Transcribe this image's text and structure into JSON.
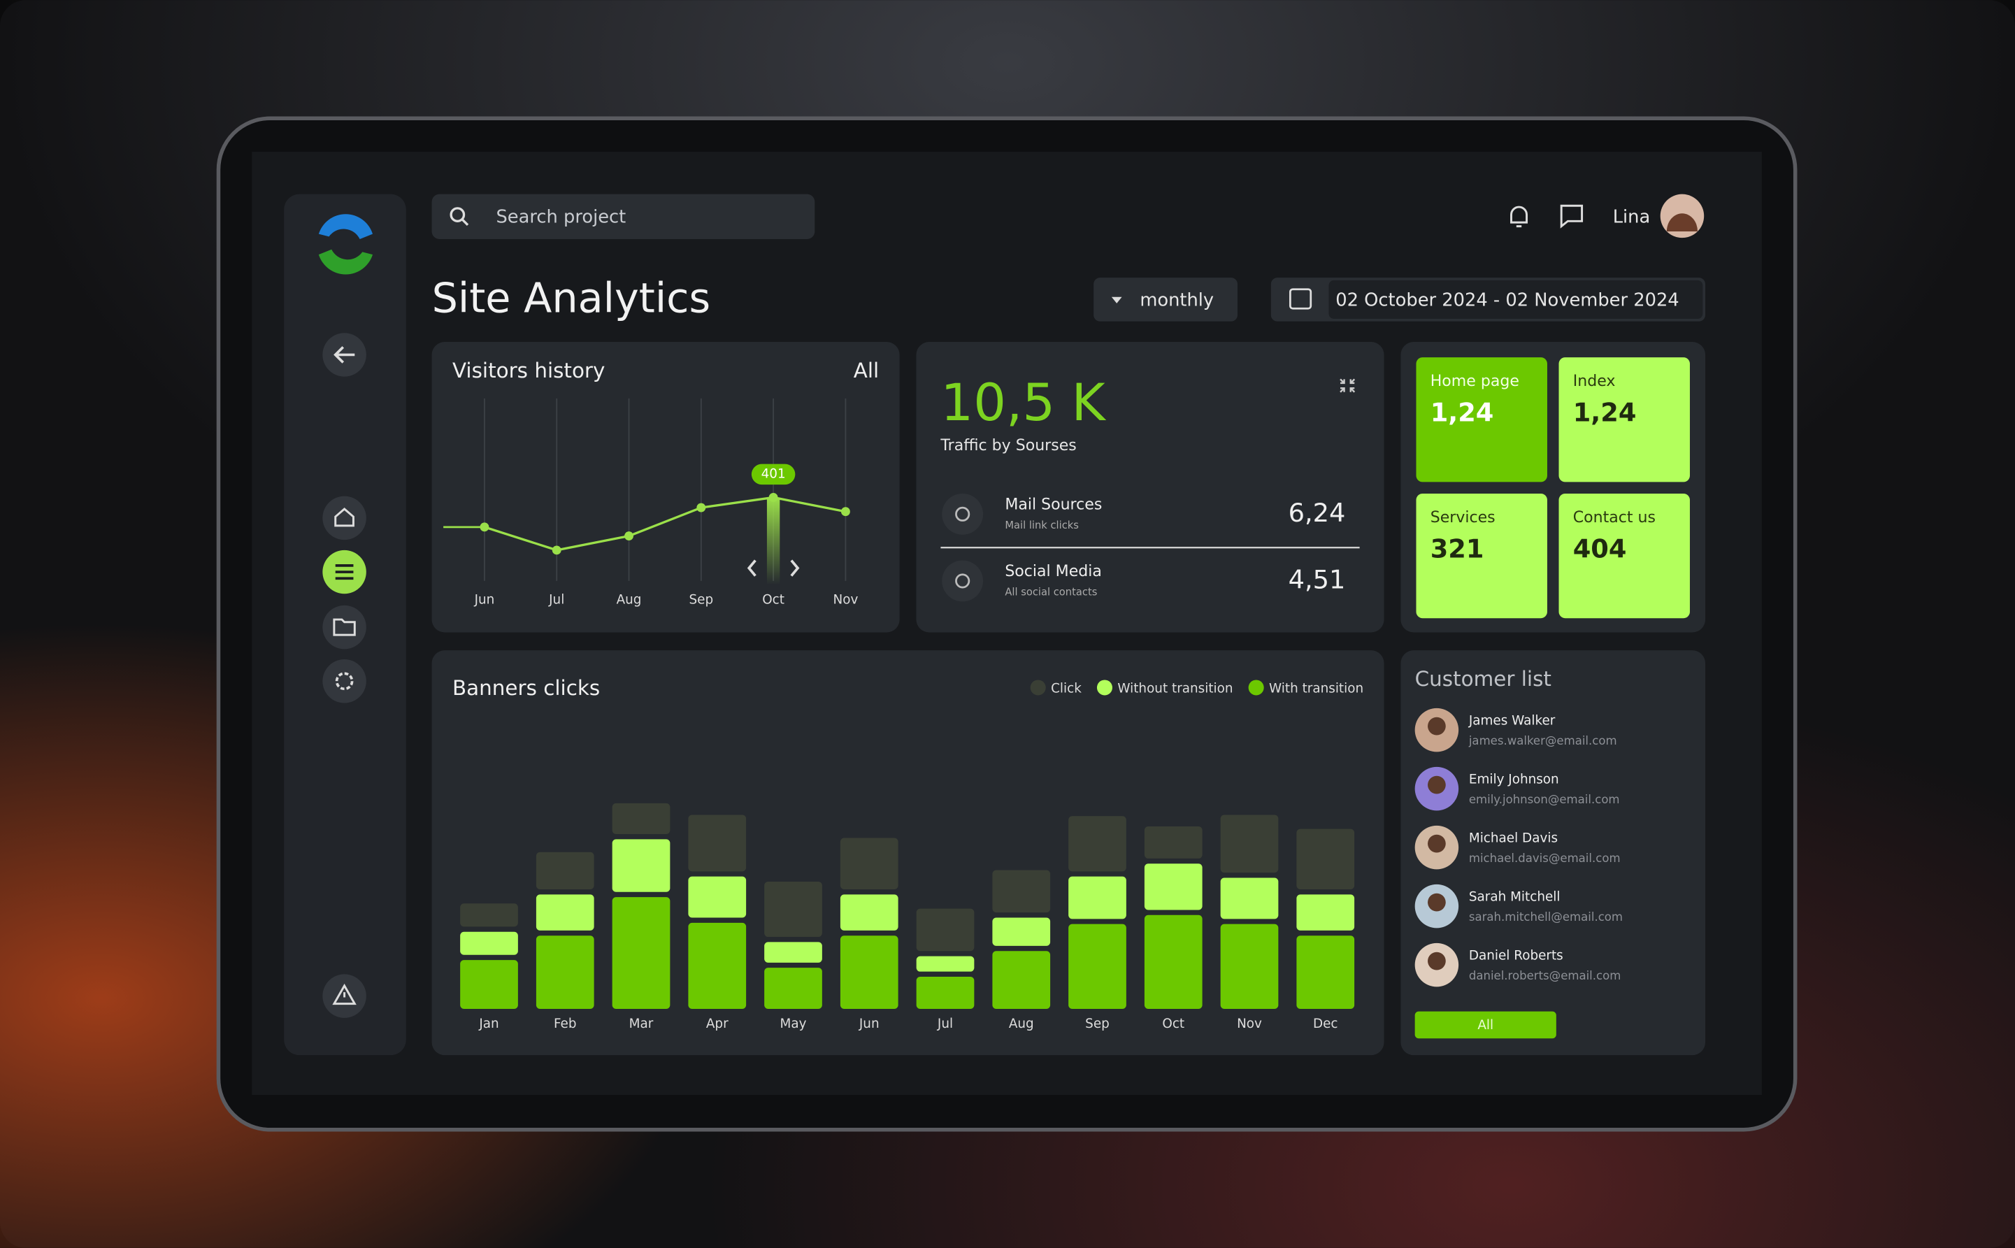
{
  "search": {
    "placeholder": "Search project"
  },
  "user": {
    "name": "Lina"
  },
  "page_title": "Site Analytics",
  "period": "monthly",
  "date_range": "02 October 2024 - 02 November 2024",
  "traffic": {
    "total": "10,5 K",
    "caption": "Traffic by Sourses",
    "sources": [
      {
        "name": "Mail Sources",
        "note": "Mail link clicks",
        "value": "6,24"
      },
      {
        "name": "Social Media",
        "note": "All social contacts",
        "value": "4,51"
      }
    ]
  },
  "tiles": [
    {
      "label": "Home page",
      "value": "1,24"
    },
    {
      "label": "Index",
      "value": "1,24"
    },
    {
      "label": "Services",
      "value": "321"
    },
    {
      "label": "Contact us",
      "value": "404"
    }
  ],
  "customers": {
    "title": "Customer list",
    "button": "All",
    "items": [
      {
        "name": "James Walker",
        "email": "james.walker@email.com"
      },
      {
        "name": "Emily Johnson",
        "email": "emily.johnson@email.com"
      },
      {
        "name": "Michael Davis",
        "email": "michael.davis@email.com"
      },
      {
        "name": "Sarah Mitchell",
        "email": "sarah.mitchell@email.com"
      },
      {
        "name": "Daniel Roberts",
        "email": "daniel.roberts@email.com"
      }
    ]
  },
  "chart_data": [
    {
      "type": "line",
      "title": "Visitors history",
      "filter": "All",
      "color": "#9be04a",
      "highlight": "Oct",
      "categories": [
        "Jun",
        "Jul",
        "Aug",
        "Sep",
        "Oct",
        "Nov"
      ],
      "values": [
        265,
        159,
        224,
        354,
        401,
        336
      ],
      "ylim": [
        0,
        855
      ],
      "grid": true
    },
    {
      "type": "stacked-bar",
      "title": "Banners clicks",
      "categories": [
        "Jan",
        "Feb",
        "Mar",
        "Apr",
        "May",
        "Jun",
        "Jul",
        "Aug",
        "Sep",
        "Oct",
        "Nov",
        "Dec"
      ],
      "series": [
        {
          "name": "With transition",
          "color": "#6cc800",
          "values": [
            38,
            57,
            87,
            67,
            32,
            57,
            25,
            45,
            66,
            73,
            66,
            57
          ]
        },
        {
          "name": "Without transition",
          "color": "#b3ff5c",
          "values": [
            18,
            28,
            41,
            32,
            16,
            28,
            12,
            22,
            33,
            36,
            32,
            28
          ]
        },
        {
          "name": "Click",
          "color": "#3a3f35",
          "values": [
            18,
            29,
            24,
            44,
            43,
            40,
            33,
            33,
            43,
            25,
            45,
            47
          ]
        }
      ],
      "ylim": [
        0,
        225
      ],
      "legend": "top-right"
    }
  ]
}
